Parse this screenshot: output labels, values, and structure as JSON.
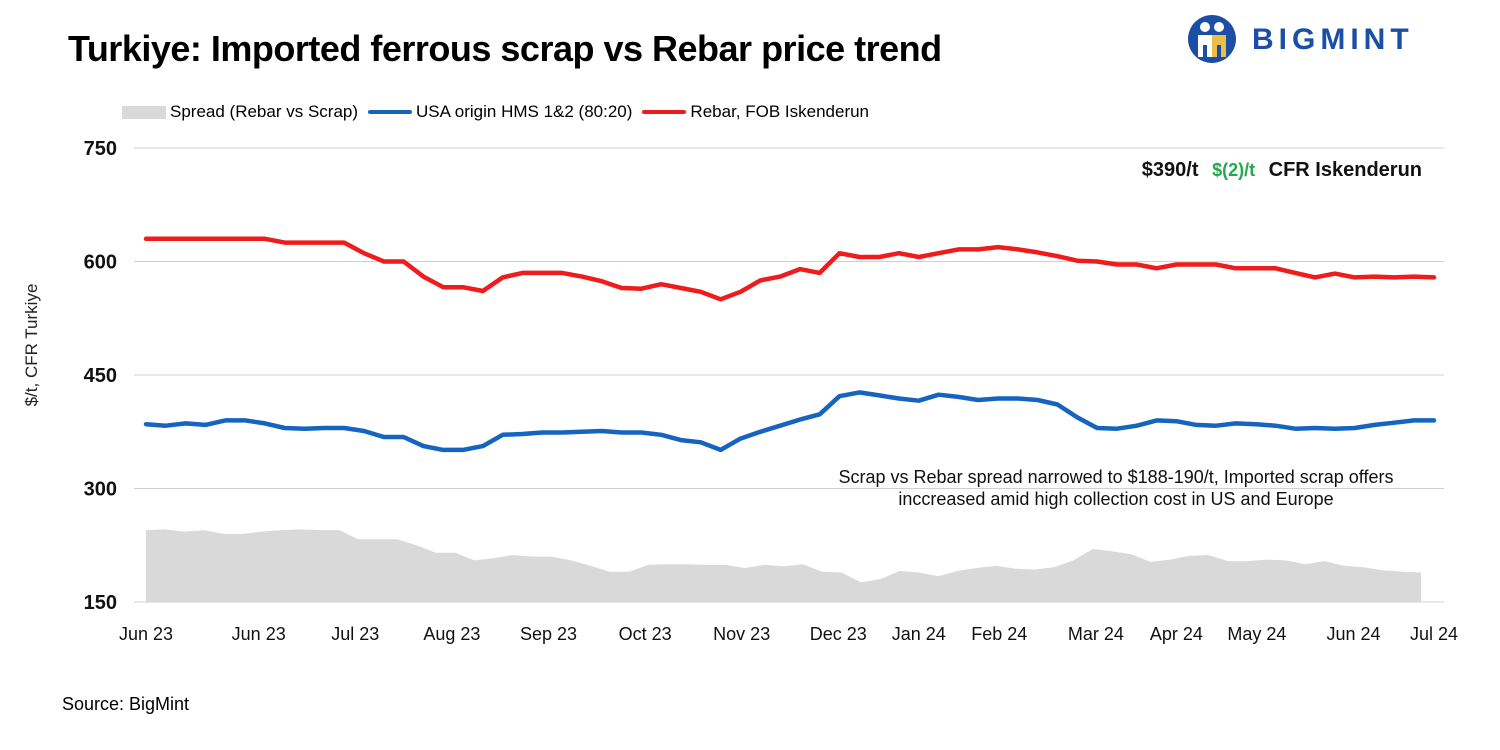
{
  "title": "Turkiye: Imported ferrous scrap vs Rebar price trend",
  "brand": {
    "name": "BIGMINT",
    "color": "#1b4fa6"
  },
  "source": "Source: BigMint",
  "chart_data": {
    "type": "line",
    "ylabel": "$/t, CFR Turkiye",
    "ylim": [
      150,
      750
    ],
    "yticks": [
      "750",
      "600",
      "450",
      "300",
      "150"
    ],
    "x_tick_labels": [
      "Jun 23",
      "Jun 23",
      "Jul 23",
      "Aug 23",
      "Sep 23",
      "Oct 23",
      "Nov 23",
      "Dec 23",
      "Jan 24",
      "Feb 24",
      "Mar 24",
      "Apr 24",
      "May 24",
      "Jun 24",
      "Jul 24"
    ],
    "x_tick_index": [
      0,
      7,
      13,
      19,
      25,
      31,
      37,
      43,
      48,
      53,
      59,
      64,
      69,
      75,
      80
    ],
    "grid": "horizontal",
    "legend_position": "top-left",
    "series": [
      {
        "name": "Spread (Rebar vs Scrap)",
        "kind": "area",
        "color": "#d9d9d9",
        "values": [
          245,
          246,
          243,
          245,
          240,
          240,
          243,
          245,
          246,
          245,
          245,
          233,
          233,
          233,
          225,
          215,
          215,
          205,
          208,
          212,
          210,
          210,
          205,
          198,
          190,
          190,
          199,
          200,
          200,
          199,
          199,
          195,
          199,
          197,
          200,
          190,
          189,
          176,
          180,
          191,
          189,
          184,
          191,
          195,
          198,
          194,
          193,
          196,
          205,
          220,
          217,
          213,
          203,
          206,
          211,
          212,
          204,
          204,
          206,
          205,
          200,
          204,
          198,
          196,
          192,
          190,
          189
        ]
      },
      {
        "name": "USA origin HMS 1&2 (80:20)",
        "kind": "line",
        "color": "#1565c0",
        "values": [
          385,
          383,
          386,
          384,
          390,
          390,
          386,
          380,
          379,
          380,
          380,
          376,
          368,
          368,
          356,
          351,
          351,
          356,
          371,
          372,
          374,
          374,
          375,
          376,
          374,
          374,
          371,
          364,
          361,
          351,
          366,
          375,
          383,
          391,
          398,
          422,
          427,
          423,
          419,
          416,
          424,
          421,
          417,
          419,
          419,
          417,
          411,
          394,
          380,
          379,
          383,
          390,
          389,
          384,
          383,
          386,
          385,
          383,
          379,
          380,
          379,
          380,
          384,
          387,
          390,
          390
        ]
      },
      {
        "name": "Rebar, FOB Iskenderun",
        "kind": "line",
        "color": "#ee1c1c",
        "values": [
          630,
          630,
          630,
          630,
          630,
          630,
          630,
          625,
          625,
          625,
          625,
          611,
          600,
          600,
          580,
          566,
          566,
          561,
          579,
          585,
          585,
          585,
          580,
          574,
          565,
          564,
          570,
          565,
          560,
          550,
          560,
          575,
          580,
          590,
          585,
          611,
          606,
          606,
          611,
          606,
          611,
          616,
          616,
          619,
          616,
          612,
          607,
          601,
          600,
          596,
          596,
          591,
          596,
          596,
          596,
          591,
          591,
          591,
          585,
          579,
          584,
          579,
          580,
          579,
          580,
          579
        ]
      }
    ],
    "series_x_index": [
      [
        0,
        1.2,
        2.4,
        3.6,
        4.8,
        6,
        7.2,
        8.4,
        9.6,
        10.8,
        12,
        13.2,
        14.4,
        15.6,
        16.8,
        18,
        19.2,
        20.4,
        21.6,
        22.8,
        24,
        25.2,
        26.4,
        27.6,
        28.8,
        30,
        31.2,
        32.4,
        33.6,
        34.8,
        36,
        37.2,
        38.4,
        39.6,
        40.8,
        42,
        43.2,
        44.4,
        45.6,
        46.8,
        48,
        49.2,
        50.4,
        51.6,
        52.8,
        54,
        55.2,
        56.4,
        57.6,
        58.8,
        60,
        61.2,
        62.4,
        63.6,
        64.8,
        66,
        67.2,
        68.4,
        69.6,
        70.8,
        72,
        73.2,
        74.4,
        75.6,
        76.8,
        78,
        79.2
      ],
      "uniform_80"
    ],
    "annotations": {
      "price_value": "$390/t",
      "price_change": "$(2)/t",
      "price_change_color": "#22a94b",
      "price_basis": "CFR Iskenderun",
      "note_line1": "Scrap vs Rebar spread narrowed to $188-190/t, Imported scrap offers",
      "note_line2": "inccreased amid high collection cost in US and Europe"
    }
  }
}
